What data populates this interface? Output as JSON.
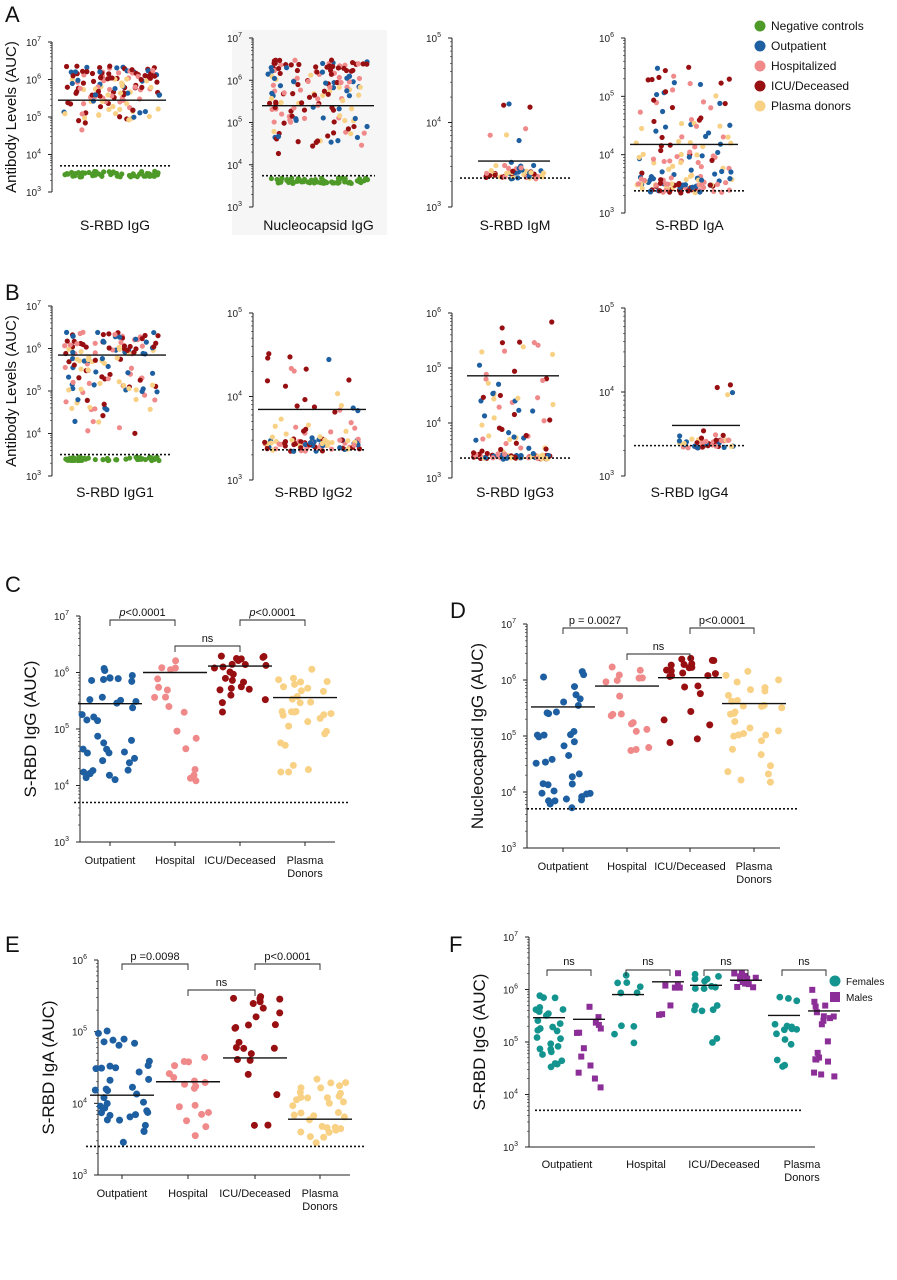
{
  "colors": {
    "negative": "#4e9a28",
    "outpatient": "#1d5fa0",
    "hospitalized": "#f08a8a",
    "icu": "#980f12",
    "plasma": "#f8d184",
    "females": "#14948f",
    "males": "#8c2e97"
  },
  "legend_top": [
    {
      "label": "Negative controls",
      "key": "negative"
    },
    {
      "label": "Outpatient",
      "key": "outpatient"
    },
    {
      "label": "Hospitalized",
      "key": "hospitalized"
    },
    {
      "label": "ICU/Deceased",
      "key": "icu"
    },
    {
      "label": "Plasma donors",
      "key": "plasma"
    }
  ],
  "legend_f": [
    {
      "label": "Females",
      "key": "females",
      "marker": "circle"
    },
    {
      "label": "Males",
      "key": "males",
      "marker": "square"
    }
  ],
  "chart_data": [
    {
      "panel": "A",
      "type": "scatter",
      "xlabel": "S-RBD IgG",
      "ylabel": "Antibody Levels (AUC)",
      "ylim_log10": [
        3,
        7
      ],
      "groups": [
        {
          "key": "mixed",
          "median": 280000,
          "spread": [
            40000,
            2200000
          ]
        },
        {
          "key": "negative",
          "values_range": [
            2500,
            4200
          ]
        }
      ],
      "cutoff": 5000
    },
    {
      "panel": "A",
      "type": "scatter",
      "xlabel": "Nucleocapsid IgG",
      "ylabel": "",
      "ylim_log10": [
        3,
        7
      ],
      "groups": [
        {
          "key": "mixed",
          "median": 250000,
          "spread": [
            8000,
            3000000
          ]
        },
        {
          "key": "negative",
          "values_range": [
            3500,
            5000
          ]
        }
      ],
      "cutoff": 5500
    },
    {
      "panel": "A",
      "type": "scatter",
      "xlabel": "S-RBD IgM",
      "ylabel": "",
      "ylim_log10": [
        3,
        5
      ],
      "groups": [
        {
          "key": "mixed",
          "median": 3500,
          "spread": [
            2200,
            17000
          ]
        }
      ],
      "cutoff": 2200
    },
    {
      "panel": "A",
      "type": "scatter",
      "xlabel": "S-RBD IgA",
      "ylabel": "",
      "ylim_log10": [
        3,
        6
      ],
      "groups": [
        {
          "key": "mixed",
          "median": 15000,
          "spread": [
            2200,
            320000
          ]
        }
      ],
      "cutoff": 2400
    },
    {
      "panel": "B",
      "type": "scatter",
      "xlabel": "S-RBD IgG1",
      "ylabel": "Antibody Levels (AUC)",
      "ylim_log10": [
        3,
        7
      ],
      "groups": [
        {
          "key": "mixed",
          "median": 700000,
          "spread": [
            5000,
            2400000
          ]
        },
        {
          "key": "negative",
          "values_range": [
            2300,
            2900
          ]
        }
      ],
      "cutoff": 3200
    },
    {
      "panel": "B",
      "type": "scatter",
      "xlabel": "S-RBD IgG2",
      "ylabel": "",
      "ylim_log10": [
        3,
        5
      ],
      "groups": [
        {
          "key": "mixed",
          "median": 7000,
          "spread": [
            2200,
            45000
          ]
        }
      ],
      "cutoff": 2300
    },
    {
      "panel": "B",
      "type": "scatter",
      "xlabel": "S-RBD IgG3",
      "ylabel": "",
      "ylim_log10": [
        3,
        6
      ],
      "groups": [
        {
          "key": "mixed",
          "median": 72000,
          "spread": [
            2200,
            700000
          ]
        }
      ],
      "cutoff": 2300
    },
    {
      "panel": "B",
      "type": "scatter",
      "xlabel": "S-RBD IgG4",
      "ylabel": "",
      "ylim_log10": [
        3,
        5
      ],
      "groups": [
        {
          "key": "mixed",
          "median": 4000,
          "spread": [
            2200,
            45000
          ]
        }
      ],
      "cutoff": 2300
    },
    {
      "panel": "C",
      "type": "scatter",
      "ylabel": "S-RBD IgG (AUC)",
      "ylim_log10": [
        3,
        7
      ],
      "cutoff": 5000,
      "categories": [
        "Outpatient",
        "Hospital",
        "ICU/Deceased",
        "Plasma\nDonors"
      ],
      "medians": [
        280000,
        1000000,
        1300000,
        360000
      ],
      "comparisons": [
        {
          "from": 0,
          "to": 1,
          "label": "p<0.0001",
          "italic_p": true
        },
        {
          "from": 1,
          "to": 2,
          "label": "ns"
        },
        {
          "from": 2,
          "to": 3,
          "label": "p<0.0001",
          "italic_p": true
        }
      ]
    },
    {
      "panel": "D",
      "type": "scatter",
      "ylabel": "Nucleocapsid IgG (AUC)",
      "ylim_log10": [
        3,
        7
      ],
      "cutoff": 5000,
      "categories": [
        "Outpatient",
        "Hospital",
        "ICU/Deceased",
        "Plasma\nDonors"
      ],
      "medians": [
        330000,
        780000,
        1100000,
        380000
      ],
      "comparisons": [
        {
          "from": 0,
          "to": 1,
          "label": "p = 0.0027"
        },
        {
          "from": 1,
          "to": 2,
          "label": "ns"
        },
        {
          "from": 2,
          "to": 3,
          "label": "p<0.0001"
        }
      ]
    },
    {
      "panel": "E",
      "type": "scatter",
      "ylabel": "S-RBD IgA (AUC)",
      "ylim_log10": [
        3,
        6
      ],
      "cutoff": 2500,
      "categories": [
        "Outpatient",
        "Hospital",
        "ICU/Deceased",
        "Plasma\nDonors"
      ],
      "medians": [
        13000,
        20000,
        43000,
        6000
      ],
      "comparisons": [
        {
          "from": 0,
          "to": 1,
          "label": "p =0.0098"
        },
        {
          "from": 1,
          "to": 2,
          "label": "ns"
        },
        {
          "from": 2,
          "to": 3,
          "label": "p<0.0001"
        }
      ]
    },
    {
      "panel": "F",
      "type": "scatter",
      "ylabel": "S-RBD IgG (AUC)",
      "ylim_log10": [
        3,
        7
      ],
      "cutoff": 5000,
      "categories": [
        "Outpatient",
        "Hospital",
        "ICU/Deceased",
        "Plasma\nDonors"
      ],
      "series": [
        {
          "name": "Females",
          "medians": [
            290000,
            800000,
            1200000,
            320000
          ]
        },
        {
          "name": "Males",
          "medians": [
            270000,
            1400000,
            1500000,
            390000
          ]
        }
      ],
      "comparisons": [
        {
          "group": 0,
          "label": "ns"
        },
        {
          "group": 1,
          "label": "ns"
        },
        {
          "group": 2,
          "label": "ns"
        },
        {
          "group": 3,
          "label": "ns"
        }
      ]
    }
  ],
  "panel_labels": [
    "A",
    "B",
    "C",
    "D",
    "E",
    "F"
  ]
}
